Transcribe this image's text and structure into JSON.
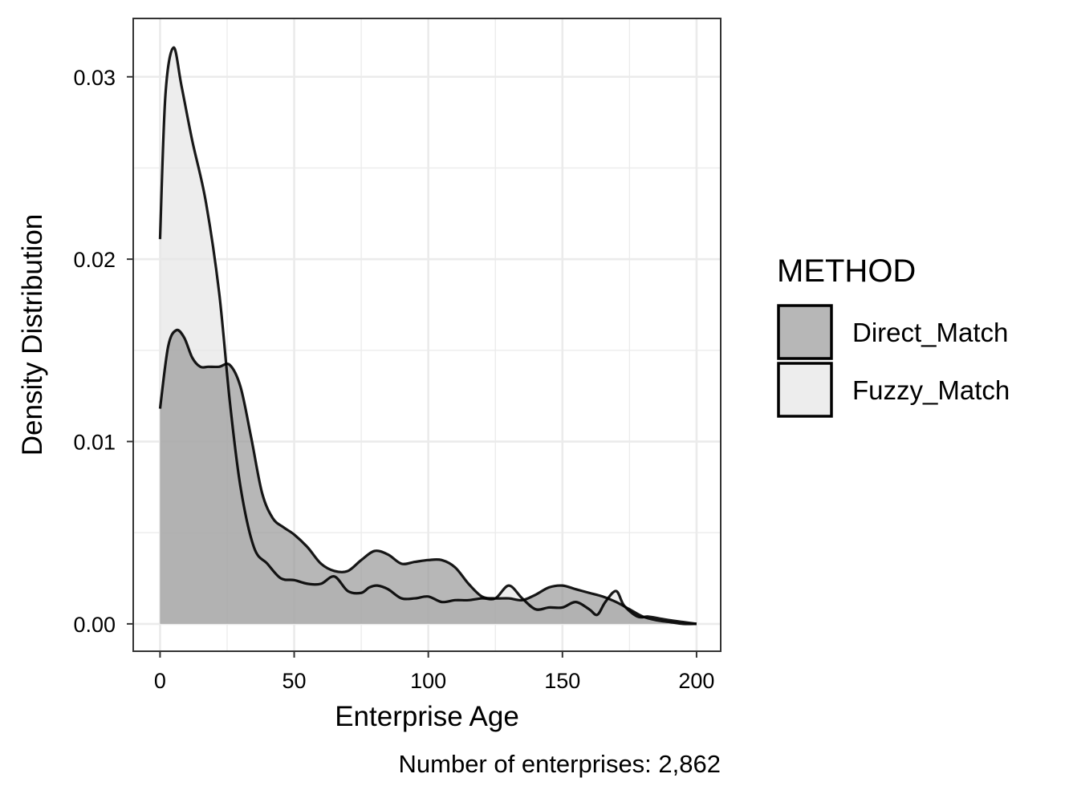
{
  "chart_data": {
    "type": "area",
    "xlabel": "Enterprise Age",
    "ylabel": "Density Distribution",
    "caption": "Number of enterprises: 2,862",
    "xlim": [
      -10,
      209
    ],
    "ylim": [
      -0.0015,
      0.0332
    ],
    "x_ticks": [
      0,
      50,
      100,
      150,
      200
    ],
    "x_tick_labels": [
      "0",
      "50",
      "100",
      "150",
      "200"
    ],
    "y_ticks": [
      0,
      0.01,
      0.02,
      0.03
    ],
    "y_tick_labels": [
      "0.00",
      "0.01",
      "0.02",
      "0.03"
    ],
    "grid": true,
    "legend": {
      "title": "METHOD",
      "placement": "right"
    },
    "series": [
      {
        "name": "Fuzzy_Match",
        "fill": "#e6e6e6",
        "x": [
          0,
          2,
          5,
          8,
          12,
          17,
          22,
          26,
          30,
          35,
          40,
          45,
          50,
          55,
          60,
          65,
          70,
          75,
          78,
          81,
          85,
          90,
          95,
          100,
          105,
          110,
          115,
          120,
          125,
          130,
          135,
          140,
          145,
          150,
          155,
          160,
          163,
          166,
          170,
          173,
          178,
          182,
          186,
          190,
          195,
          200
        ],
        "y": [
          0.0211,
          0.029,
          0.0316,
          0.0295,
          0.0265,
          0.0232,
          0.0182,
          0.0122,
          0.0075,
          0.0042,
          0.0033,
          0.0025,
          0.0024,
          0.0022,
          0.0022,
          0.0026,
          0.0018,
          0.0017,
          0.002,
          0.0021,
          0.0019,
          0.0014,
          0.0014,
          0.0015,
          0.0012,
          0.0013,
          0.0013,
          0.0014,
          0.0014,
          0.0021,
          0.0014,
          0.0008,
          0.0009,
          0.0009,
          0.0012,
          0.0008,
          0.0005,
          0.0012,
          0.0018,
          0.001,
          0.0004,
          0.0004,
          0.0003,
          0.0002,
          0.0001,
          0.0
        ]
      },
      {
        "name": "Direct_Match",
        "fill": "#999999",
        "x": [
          0,
          3,
          6,
          9,
          12,
          15,
          18,
          22,
          26,
          30,
          34,
          38,
          42,
          46,
          50,
          55,
          60,
          65,
          70,
          75,
          80,
          85,
          90,
          95,
          100,
          105,
          110,
          115,
          120,
          125,
          130,
          135,
          140,
          145,
          150,
          155,
          160,
          165,
          170,
          175,
          180,
          185,
          190,
          195,
          200
        ],
        "y": [
          0.0118,
          0.0152,
          0.0161,
          0.0157,
          0.0146,
          0.0141,
          0.0141,
          0.0141,
          0.0142,
          0.013,
          0.0102,
          0.0072,
          0.0058,
          0.0053,
          0.0049,
          0.0042,
          0.0033,
          0.0029,
          0.0029,
          0.0035,
          0.004,
          0.0038,
          0.0033,
          0.0034,
          0.0035,
          0.0035,
          0.0031,
          0.0022,
          0.0015,
          0.0014,
          0.0014,
          0.0013,
          0.0016,
          0.002,
          0.0021,
          0.0019,
          0.0017,
          0.0015,
          0.0012,
          0.0008,
          0.0004,
          0.0002,
          0.0001,
          0.0,
          0.0
        ]
      }
    ]
  }
}
